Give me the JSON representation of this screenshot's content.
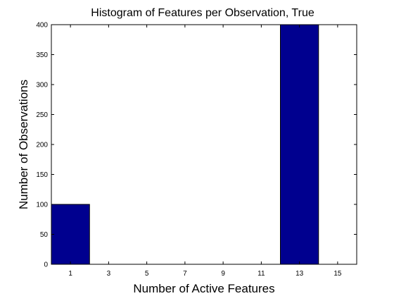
{
  "chart_data": {
    "type": "bar",
    "title": "Histogram of Features per Observation, True",
    "xlabel": "Number of Active Features",
    "ylabel": "Number of Observations",
    "categories": [
      "1",
      "3",
      "5",
      "7",
      "9",
      "11",
      "13",
      "15"
    ],
    "values": [
      100,
      0,
      0,
      0,
      0,
      0,
      400,
      0
    ],
    "xlim": [
      0,
      16
    ],
    "ylim": [
      0,
      400
    ],
    "xticks": [
      1,
      3,
      5,
      7,
      9,
      11,
      13,
      15
    ],
    "yticks": [
      0,
      50,
      100,
      150,
      200,
      250,
      300,
      350,
      400
    ],
    "bar_width": 2,
    "bar_color": "#00008f",
    "grid": false,
    "legend": "none"
  }
}
